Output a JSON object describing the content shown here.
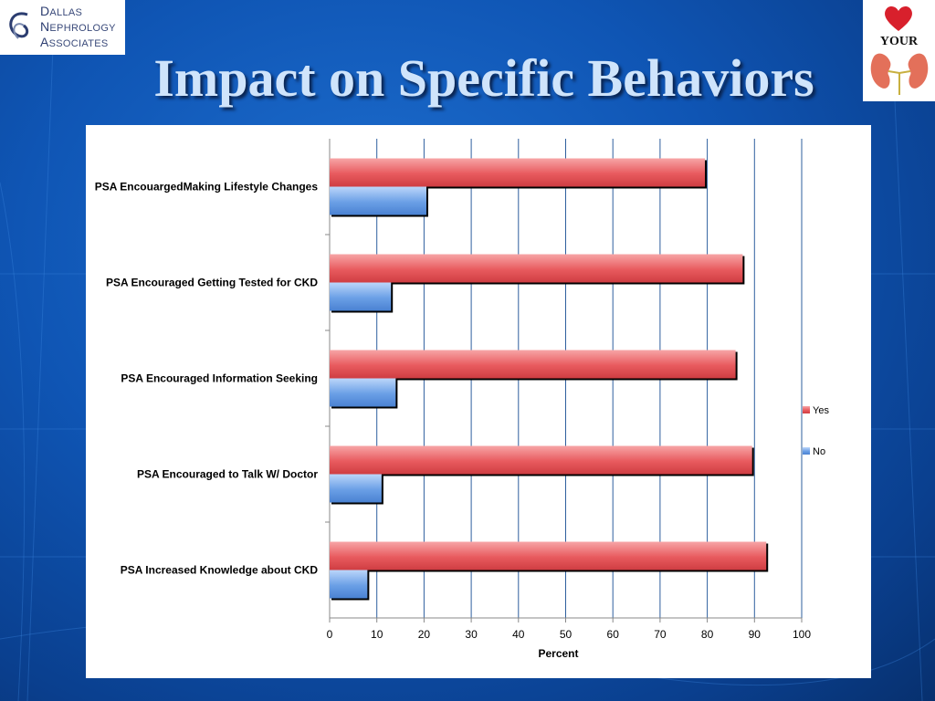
{
  "slide": {
    "title": "Impact on Specific Behaviors"
  },
  "logos": {
    "left": {
      "lines": [
        {
          "initial": "D",
          "rest": "ALLAS"
        },
        {
          "initial": "N",
          "rest": "EPHROLOGY"
        },
        {
          "initial": "A",
          "rest": "SSOCIATES"
        }
      ]
    },
    "right": {
      "text": "YOUR"
    }
  },
  "colors": {
    "yes": "#e85a5e",
    "no": "#6a9fe6",
    "gridline": "#2e5f9e"
  },
  "chart_data": {
    "type": "bar",
    "orientation": "horizontal",
    "categories": [
      "PSA EncouargedMaking Lifestyle Changes",
      "PSA Encouraged Getting Tested for CKD",
      "PSA Encouraged Information Seeking",
      "PSA Encouraged to Talk W/ Doctor",
      "PSA Increased Knowledge about CKD"
    ],
    "series": [
      {
        "name": "Yes",
        "values": [
          79.5,
          87.5,
          86,
          89.5,
          92.5
        ]
      },
      {
        "name": "No",
        "values": [
          20.5,
          13,
          14,
          11,
          8
        ]
      }
    ],
    "xlabel": "Percent",
    "ylabel": "",
    "xlim": [
      0,
      100
    ],
    "xticks": [
      "0",
      "10",
      "20",
      "30",
      "40",
      "50",
      "60",
      "70",
      "80",
      "90",
      "100"
    ],
    "grid": true,
    "legend": "right"
  }
}
